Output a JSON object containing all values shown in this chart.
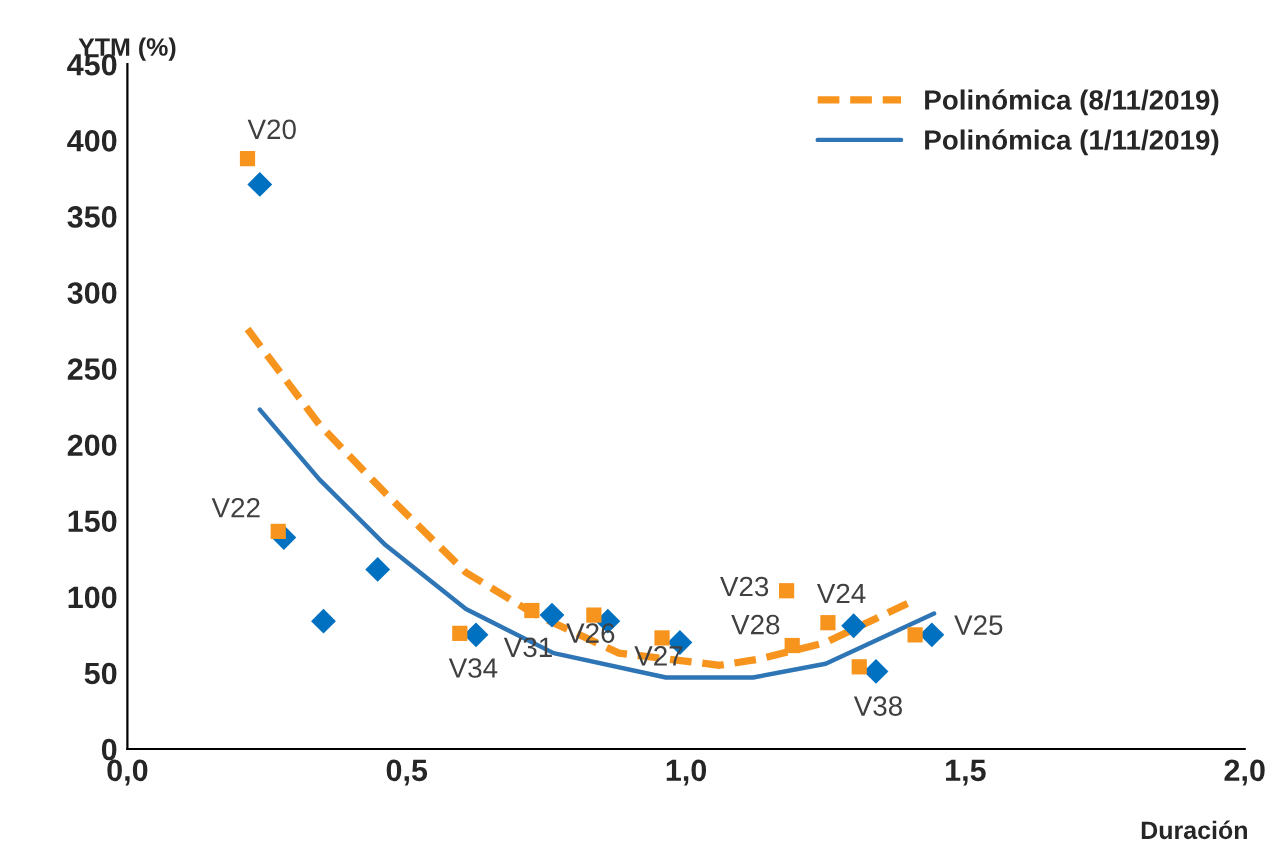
{
  "chart_data": {
    "type": "scatter",
    "xlabel": "Duración",
    "ylabel": "YTM (%)",
    "xlim": [
      0,
      2
    ],
    "ylim": [
      0,
      450
    ],
    "xticks": [
      {
        "value": 0,
        "label": "0,0"
      },
      {
        "value": 0.5,
        "label": "0,5"
      },
      {
        "value": 1,
        "label": "1,0"
      },
      {
        "value": 1.5,
        "label": "1,5"
      },
      {
        "value": 2,
        "label": "2,0"
      }
    ],
    "yticks": [
      0,
      50,
      100,
      150,
      200,
      250,
      300,
      350,
      400,
      450
    ],
    "grid": false,
    "legend": "top right",
    "series": [
      {
        "marker": "square",
        "color": "#f7941d",
        "x": [
          0.215,
          0.27,
          0.595,
          0.724,
          0.835,
          0.957,
          1.18,
          1.19,
          1.254,
          1.31,
          1.41
        ],
        "values": [
          388,
          143,
          76,
          91,
          88,
          73,
          104,
          68,
          83,
          54,
          75
        ]
      },
      {
        "marker": "diamond",
        "color": "#0070c0",
        "x": [
          0.237,
          0.28,
          0.351,
          0.448,
          0.624,
          0.76,
          0.86,
          0.989,
          1.3,
          1.34,
          1.44
        ],
        "values": [
          371,
          139,
          84,
          118,
          75,
          88,
          84,
          70,
          81,
          51,
          75
        ]
      },
      {
        "type": "line",
        "name": "Polinómica (8/11/2019)",
        "line_style": "dashed",
        "color": "#f7941d",
        "x": [
          0.215,
          0.344,
          0.462,
          0.606,
          0.727,
          0.88,
          1.06,
          1.13,
          1.25,
          1.41
        ],
        "values": [
          276,
          213,
          168,
          116,
          89,
          63,
          55,
          59,
          70,
          98
        ]
      },
      {
        "type": "line",
        "name": "Polinómica (1/11/2019)",
        "line_style": "solid",
        "color": "#2e75b6",
        "x": [
          0.237,
          0.344,
          0.462,
          0.606,
          0.763,
          0.964,
          1.12,
          1.25,
          1.444
        ],
        "values": [
          223,
          177,
          134,
          92,
          63,
          47,
          47,
          56,
          89
        ]
      }
    ],
    "annotations": [
      {
        "text": "V20",
        "x": 0.215,
        "y": 388
      },
      {
        "text": "V22",
        "x": 0.27,
        "y": 143
      },
      {
        "text": "V34",
        "x": 0.595,
        "y": 76
      },
      {
        "text": "V31",
        "x": 0.624,
        "y": 75
      },
      {
        "text": "V26",
        "x": 0.835,
        "y": 88
      },
      {
        "text": "V27",
        "x": 0.957,
        "y": 73
      },
      {
        "text": "V23",
        "x": 1.18,
        "y": 104
      },
      {
        "text": "V24",
        "x": 1.254,
        "y": 83
      },
      {
        "text": "V28",
        "x": 1.19,
        "y": 68
      },
      {
        "text": "V25",
        "x": 1.44,
        "y": 75
      },
      {
        "text": "V38",
        "x": 1.34,
        "y": 51
      }
    ]
  }
}
